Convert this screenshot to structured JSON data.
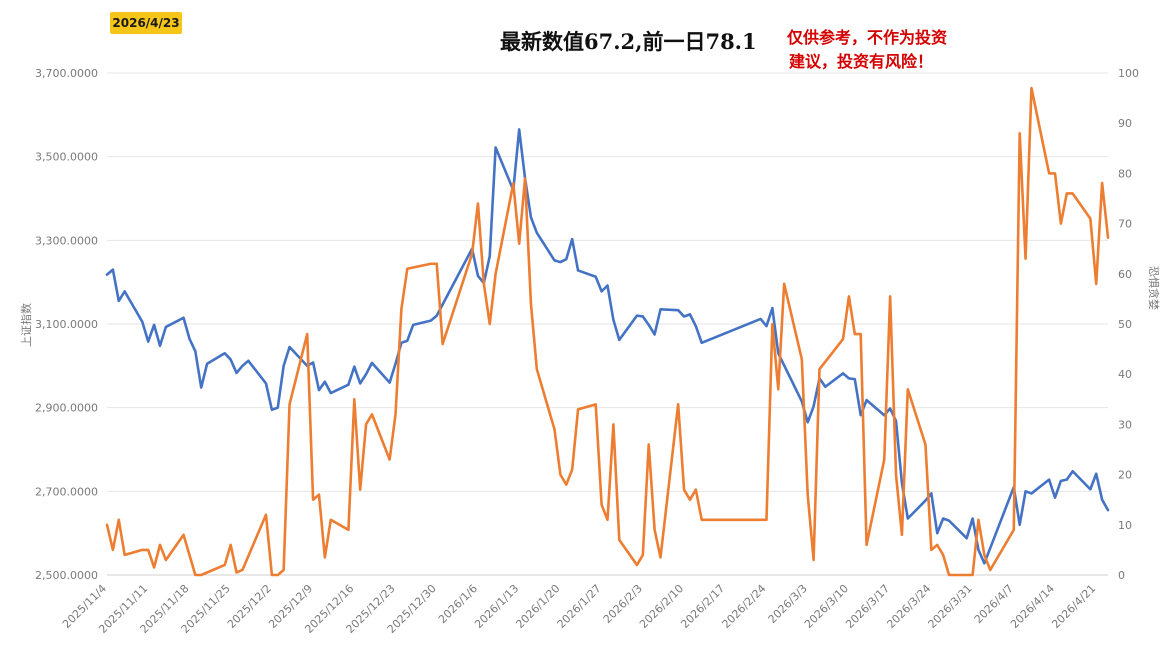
{
  "date_badge": "2026/4/23",
  "headline": "最新数值67.2,前一日78.1",
  "disclaimer": [
    "仅供参考，不作为投资",
    "建议，投资有风险！"
  ],
  "colors": {
    "index_line": "#4472c4",
    "fear_line": "#ed7d31",
    "grid": "#e6e6e6",
    "badge": "#f5c518",
    "disclaimer": "#d40000"
  },
  "chart_data": {
    "type": "line",
    "y_left_label": "上证指数",
    "y_right_label": "恐惧贪婪",
    "y_left_range": [
      2500,
      3700
    ],
    "y_right_range": [
      0,
      100
    ],
    "y_left_ticks": [
      "3,700.0000",
      "3,500.0000",
      "3,300.0000",
      "3,100.0000",
      "2,900.0000",
      "2,700.0000",
      "2,500.0000"
    ],
    "y_right_ticks": [
      "100",
      "90",
      "80",
      "70",
      "60",
      "50",
      "40",
      "30",
      "20",
      "10",
      "0"
    ],
    "x_range": [
      "2025-11-04",
      "2026-04-23"
    ],
    "x_ticks": [
      "2025/11/4",
      "2025/11/11",
      "2025/11/18",
      "2025/11/25",
      "2025/12/2",
      "2025/12/9",
      "2025/12/16",
      "2025/12/23",
      "2025/12/30",
      "2026/1/6",
      "2026/1/13",
      "2026/1/20",
      "2026/1/27",
      "2026/2/3",
      "2026/2/10",
      "2026/2/17",
      "2026/2/24",
      "2026/3/3",
      "2026/3/10",
      "2026/3/17",
      "2026/3/24",
      "2026/3/31",
      "2026/4/7",
      "2026/4/14",
      "2026/4/21"
    ],
    "series": [
      {
        "name": "上证指数",
        "axis": "left",
        "points": [
          [
            "2025-11-04",
            3218
          ],
          [
            "2025-11-05",
            3230
          ],
          [
            "2025-11-06",
            3155
          ],
          [
            "2025-11-07",
            3178
          ],
          [
            "2025-11-10",
            3105
          ],
          [
            "2025-11-11",
            3058
          ],
          [
            "2025-11-12",
            3098
          ],
          [
            "2025-11-13",
            3048
          ],
          [
            "2025-11-14",
            3093
          ],
          [
            "2025-11-17",
            3115
          ],
          [
            "2025-11-18",
            3065
          ],
          [
            "2025-11-19",
            3035
          ],
          [
            "2025-11-20",
            2948
          ],
          [
            "2025-11-21",
            3005
          ],
          [
            "2025-11-24",
            3030
          ],
          [
            "2025-11-25",
            3015
          ],
          [
            "2025-11-26",
            2983
          ],
          [
            "2025-11-27",
            3000
          ],
          [
            "2025-11-28",
            3012
          ],
          [
            "2025-12-01",
            2958
          ],
          [
            "2025-12-02",
            2895
          ],
          [
            "2025-12-03",
            2900
          ],
          [
            "2025-12-04",
            3000
          ],
          [
            "2025-12-05",
            3045
          ],
          [
            "2025-12-08",
            3000
          ],
          [
            "2025-12-09",
            3008
          ],
          [
            "2025-12-10",
            2942
          ],
          [
            "2025-12-11",
            2962
          ],
          [
            "2025-12-12",
            2935
          ],
          [
            "2025-12-15",
            2955
          ],
          [
            "2025-12-16",
            2998
          ],
          [
            "2025-12-17",
            2958
          ],
          [
            "2025-12-18",
            2980
          ],
          [
            "2025-12-19",
            3007
          ],
          [
            "2025-12-22",
            2960
          ],
          [
            "2025-12-23",
            3005
          ],
          [
            "2025-12-24",
            3055
          ],
          [
            "2025-12-25",
            3060
          ],
          [
            "2025-12-26",
            3098
          ],
          [
            "2025-12-29",
            3108
          ],
          [
            "2025-12-30",
            3120
          ],
          [
            "2026-01-05",
            3280
          ],
          [
            "2026-01-06",
            3215
          ],
          [
            "2026-01-07",
            3198
          ],
          [
            "2026-01-08",
            3262
          ],
          [
            "2026-01-09",
            3522
          ],
          [
            "2026-01-12",
            3420
          ],
          [
            "2026-01-13",
            3565
          ],
          [
            "2026-01-14",
            3448
          ],
          [
            "2026-01-15",
            3355
          ],
          [
            "2026-01-16",
            3318
          ],
          [
            "2026-01-19",
            3252
          ],
          [
            "2026-01-20",
            3248
          ],
          [
            "2026-01-21",
            3255
          ],
          [
            "2026-01-22",
            3303
          ],
          [
            "2026-01-23",
            3228
          ],
          [
            "2026-01-26",
            3213
          ],
          [
            "2026-01-27",
            3178
          ],
          [
            "2026-01-28",
            3192
          ],
          [
            "2026-01-29",
            3110
          ],
          [
            "2026-01-30",
            3062
          ],
          [
            "2026-02-02",
            3120
          ],
          [
            "2026-02-03",
            3118
          ],
          [
            "2026-02-04",
            3098
          ],
          [
            "2026-02-05",
            3075
          ],
          [
            "2026-02-06",
            3135
          ],
          [
            "2026-02-09",
            3133
          ],
          [
            "2026-02-10",
            3118
          ],
          [
            "2026-02-11",
            3123
          ],
          [
            "2026-02-12",
            3095
          ],
          [
            "2026-02-13",
            3055
          ],
          [
            "2026-02-23",
            3112
          ],
          [
            "2026-02-24",
            3095
          ],
          [
            "2026-02-25",
            3138
          ],
          [
            "2026-02-26",
            3030
          ],
          [
            "2026-03-02",
            2915
          ],
          [
            "2026-03-03",
            2865
          ],
          [
            "2026-03-04",
            2903
          ],
          [
            "2026-03-05",
            2970
          ],
          [
            "2026-03-06",
            2950
          ],
          [
            "2026-03-09",
            2982
          ],
          [
            "2026-03-10",
            2970
          ],
          [
            "2026-03-11",
            2968
          ],
          [
            "2026-03-12",
            2882
          ],
          [
            "2026-03-13",
            2918
          ],
          [
            "2026-03-16",
            2882
          ],
          [
            "2026-03-17",
            2898
          ],
          [
            "2026-03-18",
            2868
          ],
          [
            "2026-03-19",
            2720
          ],
          [
            "2026-03-20",
            2635
          ],
          [
            "2026-03-23",
            2678
          ],
          [
            "2026-03-24",
            2695
          ],
          [
            "2026-03-25",
            2600
          ],
          [
            "2026-03-26",
            2635
          ],
          [
            "2026-03-27",
            2630
          ],
          [
            "2026-03-30",
            2588
          ],
          [
            "2026-03-31",
            2635
          ],
          [
            "2026-04-01",
            2560
          ],
          [
            "2026-04-02",
            2528
          ],
          [
            "2026-04-07",
            2710
          ],
          [
            "2026-04-08",
            2620
          ],
          [
            "2026-04-09",
            2700
          ],
          [
            "2026-04-10",
            2695
          ],
          [
            "2026-04-13",
            2728
          ],
          [
            "2026-04-14",
            2685
          ],
          [
            "2026-04-15",
            2725
          ],
          [
            "2026-04-16",
            2728
          ],
          [
            "2026-04-17",
            2748
          ],
          [
            "2026-04-20",
            2705
          ],
          [
            "2026-04-21",
            2742
          ],
          [
            "2026-04-22",
            2680
          ],
          [
            "2026-04-23",
            2655
          ]
        ]
      },
      {
        "name": "恐惧贪婪",
        "axis": "right",
        "points": [
          [
            "2025-11-04",
            10
          ],
          [
            "2025-11-05",
            5
          ],
          [
            "2025-11-06",
            11
          ],
          [
            "2025-11-07",
            4
          ],
          [
            "2025-11-10",
            5
          ],
          [
            "2025-11-11",
            5
          ],
          [
            "2025-11-12",
            1.5
          ],
          [
            "2025-11-13",
            6
          ],
          [
            "2025-11-14",
            3
          ],
          [
            "2025-11-17",
            8
          ],
          [
            "2025-11-18",
            4
          ],
          [
            "2025-11-19",
            0
          ],
          [
            "2025-11-20",
            0
          ],
          [
            "2025-11-24",
            2
          ],
          [
            "2025-11-25",
            6
          ],
          [
            "2025-11-26",
            0.5
          ],
          [
            "2025-11-27",
            1
          ],
          [
            "2025-12-01",
            12
          ],
          [
            "2025-12-02",
            0
          ],
          [
            "2025-12-03",
            0
          ],
          [
            "2025-12-04",
            1
          ],
          [
            "2025-12-05",
            34
          ],
          [
            "2025-12-08",
            48
          ],
          [
            "2025-12-09",
            15
          ],
          [
            "2025-12-10",
            16
          ],
          [
            "2025-12-11",
            3.5
          ],
          [
            "2025-12-12",
            11
          ],
          [
            "2025-12-15",
            9
          ],
          [
            "2025-12-16",
            35
          ],
          [
            "2025-12-17",
            17
          ],
          [
            "2025-12-18",
            30
          ],
          [
            "2025-12-19",
            32
          ],
          [
            "2025-12-22",
            23
          ],
          [
            "2025-12-23",
            32
          ],
          [
            "2025-12-24",
            53
          ],
          [
            "2025-12-25",
            61
          ],
          [
            "2025-12-29",
            62
          ],
          [
            "2025-12-30",
            62
          ],
          [
            "2025-12-31",
            46
          ],
          [
            "2026-01-05",
            64
          ],
          [
            "2026-01-06",
            74
          ],
          [
            "2026-01-07",
            58
          ],
          [
            "2026-01-08",
            50
          ],
          [
            "2026-01-09",
            60
          ],
          [
            "2026-01-12",
            78
          ],
          [
            "2026-01-13",
            66
          ],
          [
            "2026-01-14",
            79
          ],
          [
            "2026-01-15",
            54
          ],
          [
            "2026-01-16",
            41
          ],
          [
            "2026-01-19",
            29
          ],
          [
            "2026-01-20",
            20
          ],
          [
            "2026-01-21",
            18
          ],
          [
            "2026-01-22",
            21
          ],
          [
            "2026-01-23",
            33
          ],
          [
            "2026-01-26",
            34
          ],
          [
            "2026-01-27",
            14
          ],
          [
            "2026-01-28",
            11
          ],
          [
            "2026-01-29",
            30
          ],
          [
            "2026-01-30",
            7
          ],
          [
            "2026-02-02",
            2
          ],
          [
            "2026-02-03",
            4
          ],
          [
            "2026-02-04",
            26
          ],
          [
            "2026-02-05",
            9
          ],
          [
            "2026-02-06",
            3.5
          ],
          [
            "2026-02-09",
            34
          ],
          [
            "2026-02-10",
            17
          ],
          [
            "2026-02-11",
            15
          ],
          [
            "2026-02-12",
            17
          ],
          [
            "2026-02-13",
            11
          ],
          [
            "2026-02-24",
            11
          ],
          [
            "2026-02-25",
            50
          ],
          [
            "2026-02-26",
            37
          ],
          [
            "2026-02-27",
            58
          ],
          [
            "2026-03-02",
            43
          ],
          [
            "2026-03-03",
            16
          ],
          [
            "2026-03-04",
            3
          ],
          [
            "2026-03-05",
            41
          ],
          [
            "2026-03-09",
            47
          ],
          [
            "2026-03-10",
            55.5
          ],
          [
            "2026-03-11",
            48
          ],
          [
            "2026-03-12",
            48
          ],
          [
            "2026-03-13",
            6
          ],
          [
            "2026-03-16",
            23
          ],
          [
            "2026-03-17",
            55.5
          ],
          [
            "2026-03-18",
            20
          ],
          [
            "2026-03-19",
            8
          ],
          [
            "2026-03-20",
            37
          ],
          [
            "2026-03-23",
            26
          ],
          [
            "2026-03-24",
            5
          ],
          [
            "2026-03-25",
            6
          ],
          [
            "2026-03-26",
            4
          ],
          [
            "2026-03-27",
            0
          ],
          [
            "2026-03-30",
            0
          ],
          [
            "2026-03-31",
            0
          ],
          [
            "2026-04-01",
            11
          ],
          [
            "2026-04-02",
            4
          ],
          [
            "2026-04-03",
            1
          ],
          [
            "2026-04-07",
            9
          ],
          [
            "2026-04-08",
            88
          ],
          [
            "2026-04-09",
            63
          ],
          [
            "2026-04-10",
            97
          ],
          [
            "2026-04-13",
            80
          ],
          [
            "2026-04-14",
            80
          ],
          [
            "2026-04-15",
            70
          ],
          [
            "2026-04-16",
            76
          ],
          [
            "2026-04-17",
            76
          ],
          [
            "2026-04-20",
            71
          ],
          [
            "2026-04-21",
            58
          ],
          [
            "2026-04-22",
            78.1
          ],
          [
            "2026-04-23",
            67.2
          ]
        ]
      }
    ]
  }
}
